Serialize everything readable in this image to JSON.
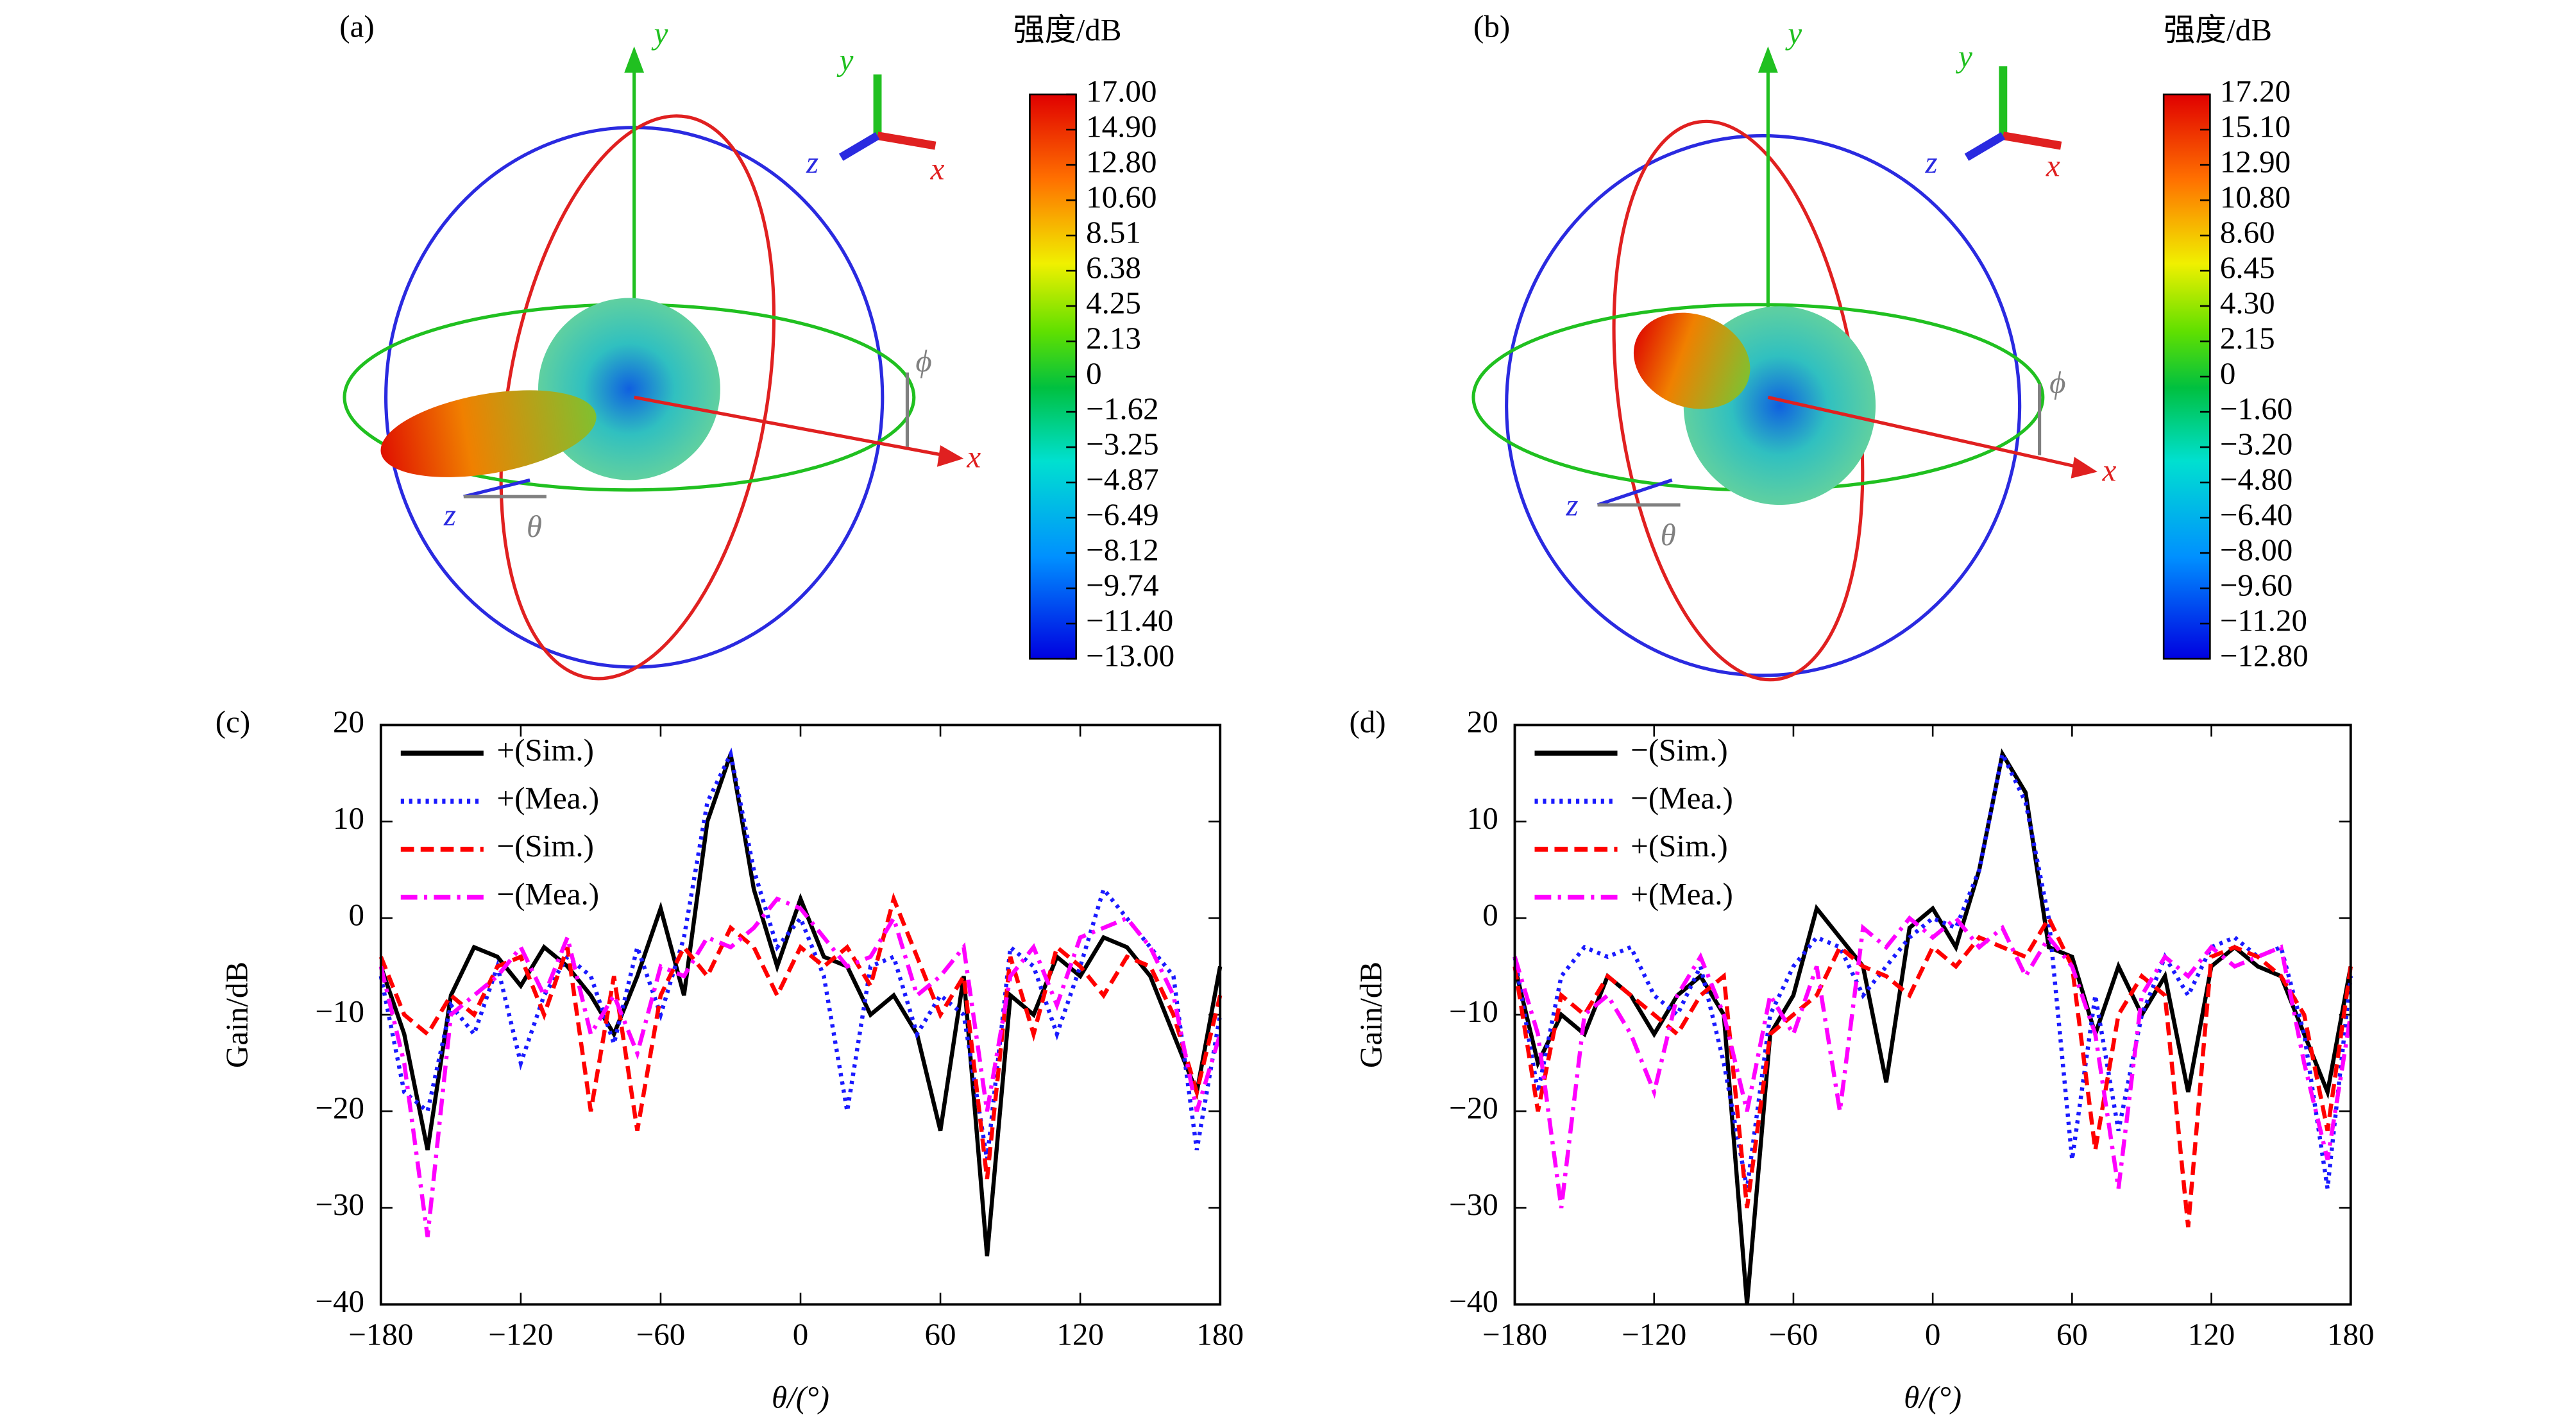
{
  "panels": [
    {
      "label": "(a)",
      "axes": {
        "x": "x",
        "y": "y",
        "z": "z",
        "theta": "θ",
        "phi": "ϕ"
      },
      "colorbar": {
        "title": "强度/dB",
        "ticks": [
          {
            "value": 17,
            "label": "17.00"
          },
          {
            "value": 14.9,
            "label": "14.90"
          },
          {
            "value": 12.8,
            "label": "12.80"
          },
          {
            "value": 10.6,
            "label": "10.60"
          },
          8.51,
          6.38,
          4.25,
          2.13,
          0,
          {
            "value": -1.62,
            "label": "−1.62"
          },
          {
            "value": -3.25,
            "label": "−3.25"
          },
          {
            "value": -4.87,
            "label": "−4.87"
          },
          {
            "value": -6.49,
            "label": "−6.49"
          },
          {
            "value": -8.12,
            "label": "−8.12"
          },
          {
            "value": -9.74,
            "label": "−9.74"
          },
          {
            "value": -11.4,
            "label": "−11.40"
          },
          {
            "value": -13,
            "label": "−13.00"
          }
        ]
      }
    },
    {
      "label": "(b)",
      "axes": {
        "x": "x",
        "y": "y",
        "z": "z",
        "theta": "θ",
        "phi": "ϕ"
      },
      "colorbar": {
        "title": "强度/dB",
        "ticks": [
          {
            "value": 17.2,
            "label": "17.20"
          },
          {
            "value": 15.1,
            "label": "15.10"
          },
          {
            "value": 12.9,
            "label": "12.90"
          },
          {
            "value": 10.8,
            "label": "10.80"
          },
          {
            "value": 8.6,
            "label": "8.60"
          },
          {
            "value": 6.45,
            "label": "6.45"
          },
          {
            "value": 4.3,
            "label": "4.30"
          },
          {
            "value": 2.15,
            "label": "2.15"
          },
          0,
          {
            "value": -1.6,
            "label": "−1.60"
          },
          {
            "value": -3.2,
            "label": "−3.20"
          },
          {
            "value": -4.8,
            "label": "−4.80"
          },
          {
            "value": -6.4,
            "label": "−6.40"
          },
          {
            "value": -8,
            "label": "−8.00"
          },
          {
            "value": -9.6,
            "label": "−9.60"
          },
          {
            "value": -11.2,
            "label": "−11.20"
          },
          {
            "value": -12.8,
            "label": "−12.80"
          }
        ]
      }
    }
  ],
  "chart_data": [
    {
      "type": "line",
      "label": "(c)",
      "xlabel": "θ/(°)",
      "ylabel": "Gain/dB",
      "legend": "upper left",
      "x": [
        -180,
        -170,
        -160,
        -150,
        -140,
        -130,
        -120,
        -110,
        -100,
        -90,
        -80,
        -70,
        -60,
        -50,
        -40,
        -30,
        -20,
        -10,
        0,
        10,
        20,
        30,
        40,
        50,
        60,
        70,
        80,
        90,
        100,
        110,
        120,
        130,
        140,
        150,
        160,
        170,
        180
      ],
      "xlim": [
        -180,
        180
      ],
      "xticks": [
        {
          "value": -180,
          "label": "−180"
        },
        {
          "value": -120,
          "label": "−120"
        },
        {
          "value": -60,
          "label": "−60"
        },
        0,
        60,
        120,
        180
      ],
      "ylim": [
        -40,
        20
      ],
      "yticks": [
        {
          "value": -40,
          "label": "−40"
        },
        {
          "value": -30,
          "label": "−30"
        },
        {
          "value": -20,
          "label": "−20"
        },
        {
          "value": -10,
          "label": "−10"
        },
        0,
        10,
        20
      ],
      "series": [
        {
          "name": "+(Sim.)",
          "color": "#000000",
          "dash": "solid",
          "values": [
            -5,
            -12,
            -24,
            -8,
            -3,
            -4,
            -7,
            -3,
            -5,
            -8,
            -12,
            -6,
            1,
            -8,
            10,
            17,
            3,
            -5,
            2,
            -4,
            -5,
            -10,
            -8,
            -12,
            -22,
            -6,
            -35,
            -8,
            -10,
            -4,
            -6,
            -2,
            -3,
            -6,
            -12,
            -18,
            -5
          ]
        },
        {
          "name": "+(Mea.)",
          "color": "#1a1aff",
          "dash": "dotted",
          "values": [
            -6,
            -18,
            -20,
            -9,
            -12,
            -5,
            -15,
            -8,
            -4,
            -6,
            -13,
            -3,
            -10,
            -2,
            12,
            17,
            5,
            -3,
            0,
            -6,
            -20,
            -5,
            -4,
            -12,
            -8,
            -10,
            -25,
            -3,
            -5,
            -12,
            -5,
            3,
            0,
            -3,
            -6,
            -24,
            -10
          ]
        },
        {
          "name": "−(Sim.)",
          "color": "#ff0000",
          "dash": "dashed",
          "values": [
            -4,
            -10,
            -12,
            -8,
            -10,
            -5,
            -4,
            -10,
            -3,
            -20,
            -6,
            -22,
            -8,
            -3,
            -6,
            -1,
            -3,
            -8,
            -3,
            -5,
            -3,
            -7,
            2,
            -4,
            -10,
            -6,
            -27,
            -4,
            -12,
            -3,
            -5,
            -8,
            -4,
            -5,
            -10,
            -18,
            -8
          ]
        },
        {
          "name": "−(Mea.)",
          "color": "#ff00ff",
          "dash": "dashdot",
          "values": [
            -5,
            -15,
            -33,
            -10,
            -8,
            -6,
            -3,
            -8,
            -2,
            -12,
            -8,
            -14,
            -5,
            -6,
            -2,
            -3,
            -1,
            2,
            1,
            -2,
            -5,
            -4,
            0,
            -8,
            -6,
            -3,
            -20,
            -6,
            -3,
            -9,
            -2,
            -1,
            0,
            -3,
            -8,
            -20,
            -12
          ]
        }
      ]
    },
    {
      "type": "line",
      "label": "(d)",
      "xlabel": "θ/(°)",
      "ylabel": "Gain/dB",
      "legend": "upper left",
      "x": [
        -180,
        -170,
        -160,
        -150,
        -140,
        -130,
        -120,
        -110,
        -100,
        -90,
        -80,
        -70,
        -60,
        -50,
        -40,
        -30,
        -20,
        -10,
        0,
        10,
        20,
        30,
        40,
        50,
        60,
        70,
        80,
        90,
        100,
        110,
        120,
        130,
        140,
        150,
        160,
        170,
        180
      ],
      "xlim": [
        -180,
        180
      ],
      "xticks": [
        {
          "value": -180,
          "label": "−180"
        },
        {
          "value": -120,
          "label": "−120"
        },
        {
          "value": -60,
          "label": "−60"
        },
        0,
        60,
        120,
        180
      ],
      "ylim": [
        -40,
        20
      ],
      "yticks": [
        {
          "value": -40,
          "label": "−40"
        },
        {
          "value": -30,
          "label": "−30"
        },
        {
          "value": -20,
          "label": "−20"
        },
        {
          "value": -10,
          "label": "−10"
        },
        0,
        10,
        20
      ],
      "series": [
        {
          "name": "−(Sim.)",
          "color": "#000000",
          "dash": "solid",
          "values": [
            -5,
            -15,
            -10,
            -12,
            -6,
            -8,
            -12,
            -8,
            -6,
            -10,
            -40,
            -12,
            -8,
            1,
            -2,
            -5,
            -17,
            -1,
            1,
            -3,
            5,
            17,
            13,
            -3,
            -4,
            -12,
            -5,
            -10,
            -6,
            -18,
            -5,
            -3,
            -5,
            -6,
            -12,
            -18,
            -5
          ]
        },
        {
          "name": "−(Mea.)",
          "color": "#1a1aff",
          "dash": "dotted",
          "values": [
            -4,
            -18,
            -6,
            -3,
            -4,
            -3,
            -8,
            -10,
            -5,
            -15,
            -28,
            -10,
            -5,
            -2,
            -3,
            -8,
            -5,
            -2,
            0,
            -1,
            5,
            17,
            12,
            0,
            -25,
            -8,
            -22,
            -10,
            -4,
            -8,
            -3,
            -2,
            -4,
            -3,
            -12,
            -28,
            -6
          ]
        },
        {
          "name": "+(Sim.)",
          "color": "#ff0000",
          "dash": "dashed",
          "values": [
            -5,
            -20,
            -8,
            -10,
            -6,
            -8,
            -10,
            -12,
            -8,
            -6,
            -30,
            -12,
            -10,
            -8,
            -3,
            -5,
            -6,
            -8,
            -3,
            -5,
            -2,
            -3,
            -4,
            0,
            -5,
            -24,
            -10,
            -6,
            -8,
            -32,
            -4,
            -3,
            -4,
            -6,
            -10,
            -22,
            -5
          ]
        },
        {
          "name": "+(Mea.)",
          "color": "#ff00ff",
          "dash": "dashdot",
          "values": [
            -4,
            -12,
            -30,
            -10,
            -8,
            -12,
            -18,
            -8,
            -4,
            -10,
            -20,
            -8,
            -12,
            -5,
            -20,
            -1,
            -3,
            0,
            -2,
            0,
            -3,
            -1,
            -6,
            -2,
            -5,
            -12,
            -28,
            -8,
            -4,
            -6,
            -3,
            -5,
            -4,
            -3,
            -15,
            -25,
            -10
          ]
        }
      ]
    }
  ]
}
